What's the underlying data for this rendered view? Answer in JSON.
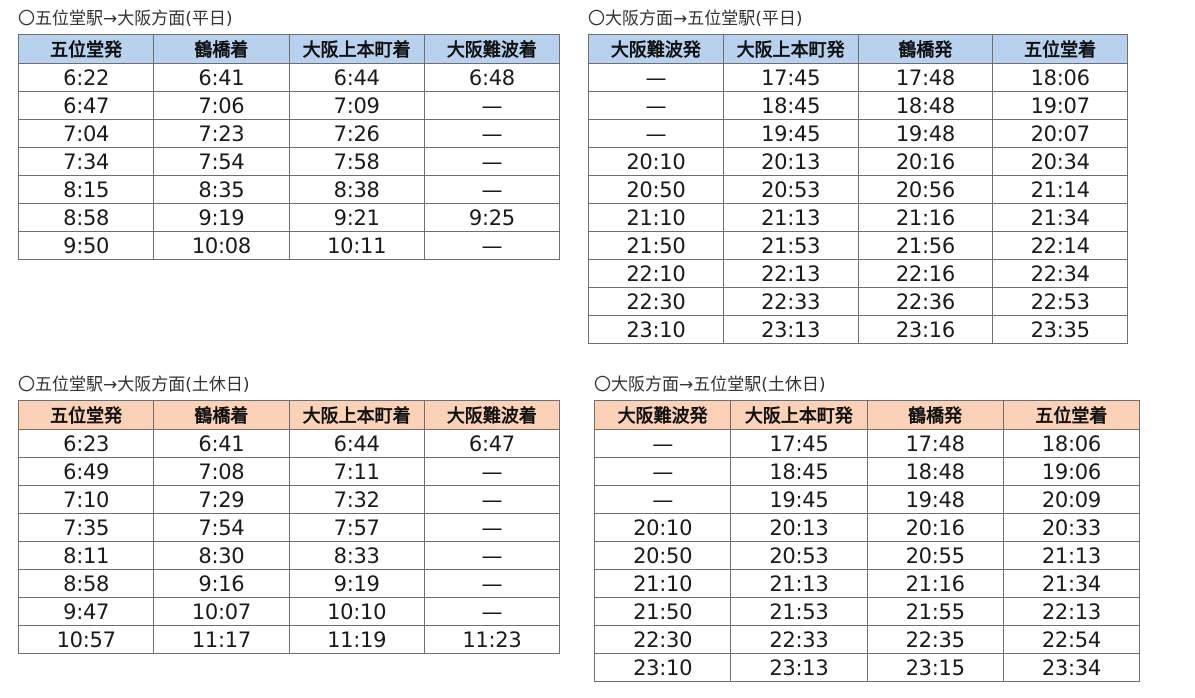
{
  "timetables": [
    {
      "id": "tl",
      "title": "〇五位堂駅→大阪方面(平日)",
      "theme": "weekday",
      "header_color": "#b7d1ef",
      "headers": [
        "五位堂発",
        "鶴橋着",
        "大阪上本町着",
        "大阪難波着"
      ],
      "rows": [
        [
          "6:22",
          "6:41",
          "6:44",
          "6:48"
        ],
        [
          "6:47",
          "7:06",
          "7:09",
          "—"
        ],
        [
          "7:04",
          "7:23",
          "7:26",
          "—"
        ],
        [
          "7:34",
          "7:54",
          "7:58",
          "—"
        ],
        [
          "8:15",
          "8:35",
          "8:38",
          "—"
        ],
        [
          "8:58",
          "9:19",
          "9:21",
          "9:25"
        ],
        [
          "9:50",
          "10:08",
          "10:11",
          "—"
        ]
      ]
    },
    {
      "id": "tr",
      "title": "〇大阪方面→五位堂駅(平日)",
      "theme": "weekday",
      "header_color": "#b7d1ef",
      "headers": [
        "大阪難波発",
        "大阪上本町発",
        "鶴橋発",
        "五位堂着"
      ],
      "rows": [
        [
          "—",
          "17:45",
          "17:48",
          "18:06"
        ],
        [
          "—",
          "18:45",
          "18:48",
          "19:07"
        ],
        [
          "—",
          "19:45",
          "19:48",
          "20:07"
        ],
        [
          "20:10",
          "20:13",
          "20:16",
          "20:34"
        ],
        [
          "20:50",
          "20:53",
          "20:56",
          "21:14"
        ],
        [
          "21:10",
          "21:13",
          "21:16",
          "21:34"
        ],
        [
          "21:50",
          "21:53",
          "21:56",
          "22:14"
        ],
        [
          "22:10",
          "22:13",
          "22:16",
          "22:34"
        ],
        [
          "22:30",
          "22:33",
          "22:36",
          "22:53"
        ],
        [
          "23:10",
          "23:13",
          "23:16",
          "23:35"
        ]
      ]
    },
    {
      "id": "bl",
      "title": "〇五位堂駅→大阪方面(土休日)",
      "theme": "holiday",
      "header_color": "#fbd2b7",
      "headers": [
        "五位堂発",
        "鶴橋着",
        "大阪上本町着",
        "大阪難波着"
      ],
      "rows": [
        [
          "6:23",
          "6:41",
          "6:44",
          "6:47"
        ],
        [
          "6:49",
          "7:08",
          "7:11",
          "—"
        ],
        [
          "7:10",
          "7:29",
          "7:32",
          "—"
        ],
        [
          "7:35",
          "7:54",
          "7:57",
          "—"
        ],
        [
          "8:11",
          "8:30",
          "8:33",
          "—"
        ],
        [
          "8:58",
          "9:16",
          "9:19",
          "—"
        ],
        [
          "9:47",
          "10:07",
          "10:10",
          "—"
        ],
        [
          "10:57",
          "11:17",
          "11:19",
          "11:23"
        ]
      ]
    },
    {
      "id": "br",
      "title": "〇大阪方面→五位堂駅(土休日)",
      "theme": "holiday",
      "header_color": "#fbd2b7",
      "headers": [
        "大阪難波発",
        "大阪上本町発",
        "鶴橋発",
        "五位堂着"
      ],
      "rows": [
        [
          "—",
          "17:45",
          "17:48",
          "18:06"
        ],
        [
          "—",
          "18:45",
          "18:48",
          "19:06"
        ],
        [
          "—",
          "19:45",
          "19:48",
          "20:09"
        ],
        [
          "20:10",
          "20:13",
          "20:16",
          "20:33"
        ],
        [
          "20:50",
          "20:53",
          "20:55",
          "21:13"
        ],
        [
          "21:10",
          "21:13",
          "21:16",
          "21:34"
        ],
        [
          "21:50",
          "21:53",
          "21:55",
          "22:13"
        ],
        [
          "22:30",
          "22:33",
          "22:35",
          "22:54"
        ],
        [
          "23:10",
          "23:13",
          "23:15",
          "23:34"
        ]
      ]
    }
  ]
}
